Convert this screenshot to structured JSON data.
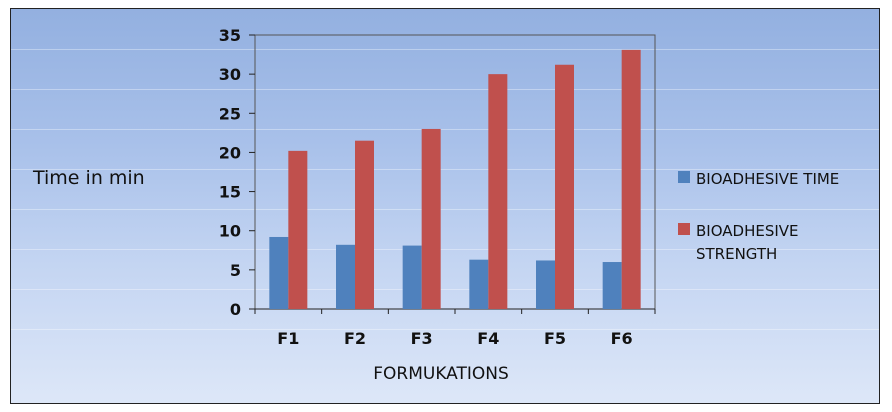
{
  "chart_data": {
    "type": "bar",
    "categories": [
      "F1",
      "F2",
      "F3",
      "F4",
      "F5",
      "F6"
    ],
    "series": [
      {
        "name": "BIOADHESIVE TIME",
        "values": [
          9.2,
          8.2,
          8.1,
          6.3,
          6.2,
          6.0
        ],
        "color": "#4f81bd"
      },
      {
        "name": "BIOADHESIVE STRENGTH",
        "values": [
          20.2,
          21.5,
          23.0,
          30.0,
          31.2,
          33.1
        ],
        "color": "#c0504d"
      }
    ],
    "xlabel": "FORMUKATIONS",
    "ylabel": "Time in min",
    "ylim": [
      0,
      35
    ],
    "yticks": [
      "0",
      "5",
      "10",
      "15",
      "20",
      "25",
      "30",
      "35"
    ],
    "grid": false,
    "legend_position": "right"
  }
}
